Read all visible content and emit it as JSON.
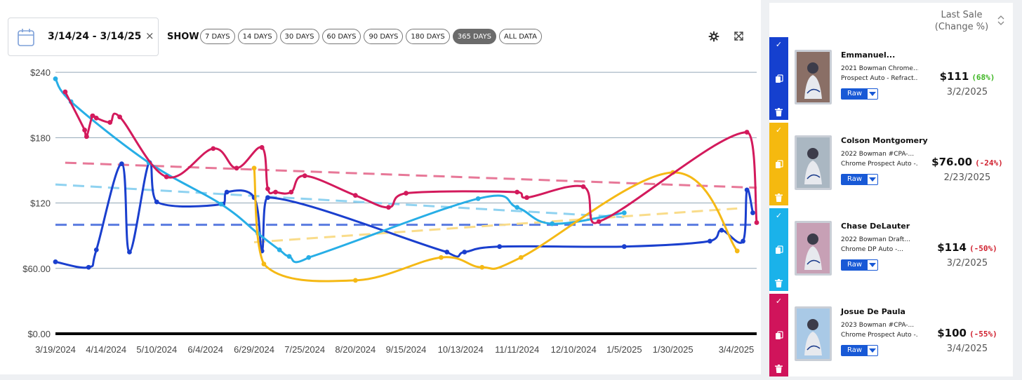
{
  "controls": {
    "date_range": "3/14/24 - 3/14/25",
    "clear": "×",
    "show_label": "SHOW",
    "ranges": [
      "7 DAYS",
      "14 DAYS",
      "30 DAYS",
      "60 DAYS",
      "90 DAYS",
      "180 DAYS",
      "365 DAYS",
      "ALL DATA"
    ],
    "active_range": "365 DAYS",
    "settings_icon": "gear-icon",
    "expand_icon": "expand-icon"
  },
  "chart_data": {
    "type": "line",
    "yticks": [
      "$0.00",
      "$60.00",
      "$120",
      "$180",
      "$240"
    ],
    "ylim": [
      0,
      242
    ],
    "xticks": [
      "3/19/2024",
      "4/14/2024",
      "5/10/2024",
      "6/4/2024",
      "6/29/2024",
      "7/25/2024",
      "8/20/2024",
      "9/15/2024",
      "10/13/2024",
      "11/11/2024",
      "12/10/2024",
      "1/5/2025",
      "1/30/2025",
      "3/4/2025"
    ],
    "xlim": [
      "2024-03-19",
      "2025-03-14"
    ],
    "grid": true,
    "legend": "none",
    "series": [
      {
        "color": "#1a3fce",
        "trend": 100,
        "points": [
          [
            "2024-03-19",
            66
          ],
          [
            "2024-04-05",
            61
          ],
          [
            "2024-04-09",
            77
          ],
          [
            "2024-04-22",
            156
          ],
          [
            "2024-04-26",
            75
          ],
          [
            "2024-05-06",
            157
          ],
          [
            "2024-05-10",
            121
          ],
          [
            "2024-06-13",
            119
          ],
          [
            "2024-06-15",
            130
          ],
          [
            "2024-06-29",
            125
          ],
          [
            "2024-07-03",
            76
          ],
          [
            "2024-07-06",
            125
          ],
          [
            "2024-10-06",
            75
          ],
          [
            "2024-10-15",
            75
          ],
          [
            "2024-11-02",
            80
          ],
          [
            "2025-01-05",
            80
          ],
          [
            "2025-02-18",
            85
          ],
          [
            "2025-02-24",
            95
          ],
          [
            "2025-03-07",
            85
          ],
          [
            "2025-03-09",
            132
          ],
          [
            "2025-03-12",
            111
          ]
        ]
      },
      {
        "color": "#27aee6",
        "trend_start": 137,
        "trend_end": 107,
        "points": [
          [
            "2024-03-19",
            234
          ],
          [
            "2024-03-27",
            213
          ],
          [
            "2024-05-06",
            157
          ],
          [
            "2024-06-12",
            119
          ],
          [
            "2024-07-01",
            92
          ],
          [
            "2024-07-12",
            77
          ],
          [
            "2024-07-17",
            71
          ],
          [
            "2024-07-27",
            70
          ],
          [
            "2024-10-22",
            124
          ],
          [
            "2024-11-11",
            116
          ],
          [
            "2024-11-29",
            101
          ],
          [
            "2025-01-05",
            111
          ]
        ]
      },
      {
        "color": "#f5b915",
        "trend_start": 84,
        "trend_end": 115,
        "points": [
          [
            "2024-06-29",
            152
          ],
          [
            "2024-07-04",
            64
          ],
          [
            "2024-08-20",
            49
          ],
          [
            "2024-10-03",
            70
          ],
          [
            "2024-10-24",
            61
          ],
          [
            "2024-11-13",
            70
          ],
          [
            "2025-01-30",
            148
          ],
          [
            "2025-03-04",
            76
          ]
        ]
      },
      {
        "color": "#d31a5c",
        "trend_start": 157,
        "trend_end": 134,
        "points": [
          [
            "2024-03-24",
            222
          ],
          [
            "2024-04-03",
            187
          ],
          [
            "2024-04-04",
            181
          ],
          [
            "2024-04-07",
            200
          ],
          [
            "2024-04-09",
            198
          ],
          [
            "2024-04-16",
            194
          ],
          [
            "2024-04-21",
            199
          ],
          [
            "2024-05-15",
            144
          ],
          [
            "2024-06-08",
            170
          ],
          [
            "2024-06-20",
            152
          ],
          [
            "2024-07-03",
            171
          ],
          [
            "2024-07-06",
            133
          ],
          [
            "2024-07-10",
            130
          ],
          [
            "2024-07-18",
            130
          ],
          [
            "2024-07-25",
            145
          ],
          [
            "2024-08-20",
            127
          ],
          [
            "2024-09-06",
            116
          ],
          [
            "2024-09-15",
            129
          ],
          [
            "2024-11-11",
            130
          ],
          [
            "2024-11-16",
            125
          ],
          [
            "2024-12-15",
            135
          ],
          [
            "2024-12-23",
            103
          ],
          [
            "2025-03-09",
            185
          ],
          [
            "2025-03-14",
            102
          ]
        ]
      }
    ]
  },
  "sidebar": {
    "header_line1": "Last Sale",
    "header_line2": "(Change %)",
    "cards": [
      {
        "color": "#1540cf",
        "name": "Emmanuel...",
        "desc1": "2021 Bowman Chrome...",
        "desc2": "Prospect Auto - Refract...",
        "grade": "Raw",
        "price": "$111",
        "change": "(68%)",
        "change_color": "#3cb521",
        "date": "3/2/2025"
      },
      {
        "color": "#f5b90f",
        "name": "Colson Montgomery",
        "desc1": "2022 Bowman #CPA-...",
        "desc2": "Chrome Prospect Auto -...",
        "grade": "Raw",
        "price": "$76.00",
        "change": "(-24%)",
        "change_color": "#d0202e",
        "date": "2/23/2025"
      },
      {
        "color": "#1ab2ea",
        "name": "Chase DeLauter",
        "desc1": "2022 Bowman Draft...",
        "desc2": "Chrome DP Auto -...",
        "grade": "Raw",
        "price": "$114",
        "change": "(-50%)",
        "change_color": "#d0202e",
        "date": "3/2/2025"
      },
      {
        "color": "#d0145b",
        "name": "Josue De Paula",
        "desc1": "2023 Bowman #CPA-...",
        "desc2": "Chrome Prospect Auto -...",
        "grade": "Raw",
        "price": "$100",
        "change": "(-55%)",
        "change_color": "#d0202e",
        "date": "3/4/2025"
      }
    ]
  }
}
